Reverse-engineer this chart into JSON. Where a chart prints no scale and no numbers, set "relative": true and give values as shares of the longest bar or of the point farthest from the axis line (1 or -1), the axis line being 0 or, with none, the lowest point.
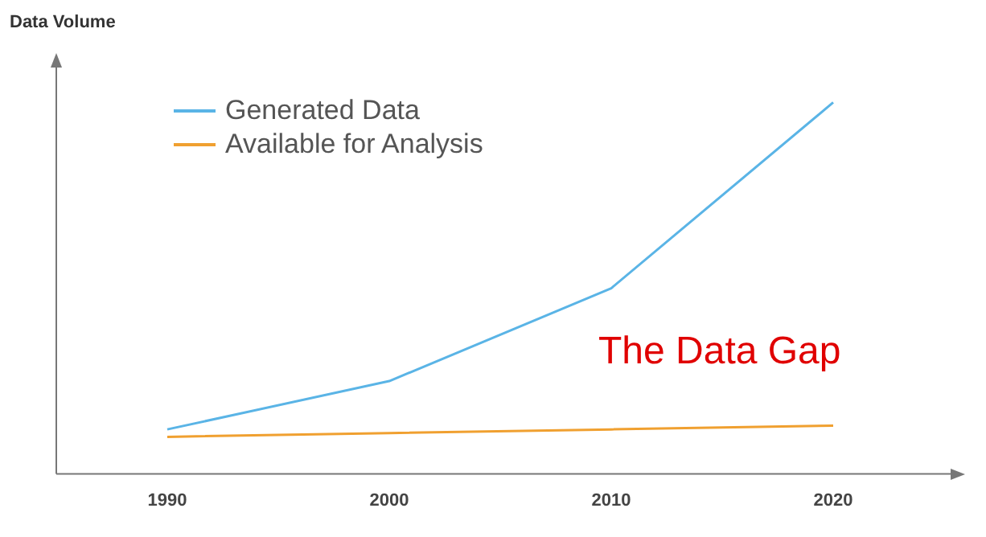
{
  "chart_data": {
    "type": "line",
    "ylabel": "Data Volume",
    "relative": true,
    "categories": [
      "1990",
      "2000",
      "2010",
      "2020"
    ],
    "series": [
      {
        "name": "Generated Data",
        "color": "#5ab4e6",
        "values": [
          0.12,
          0.25,
          0.5,
          1
        ]
      },
      {
        "name": "Available for Analysis",
        "color": "#f0a030",
        "values": [
          0.1,
          0.11,
          0.12,
          0.13
        ]
      }
    ],
    "legend": "top left",
    "grid": false,
    "marker": "none",
    "line_style": "solid",
    "annotations": [
      "The Data Gap"
    ]
  }
}
